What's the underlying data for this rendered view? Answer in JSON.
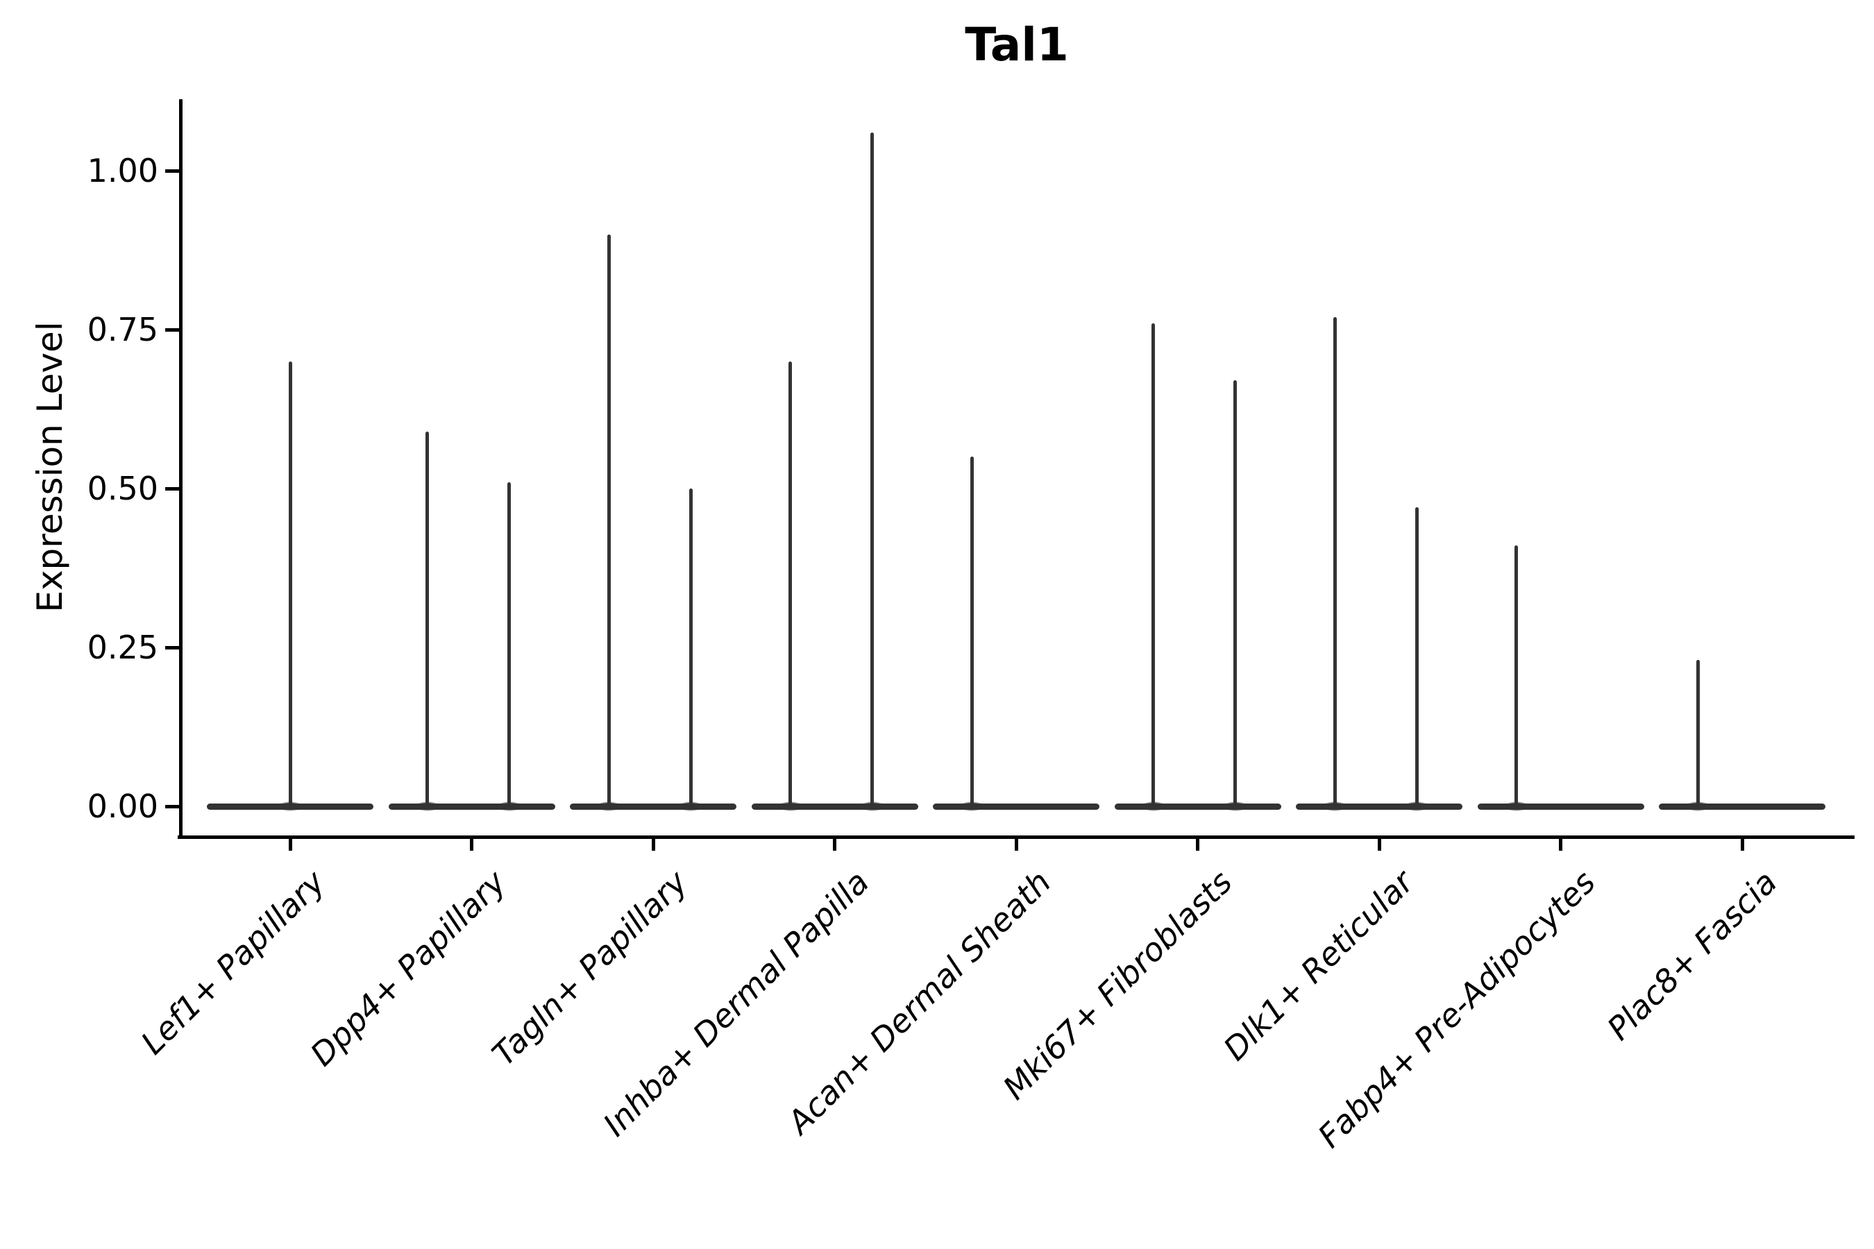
{
  "figure": {
    "background": "#ffffff",
    "ink_color": "#000000",
    "violin_color": "#333333"
  },
  "chart_data": {
    "type": "violin",
    "title": "Tal1",
    "xlabel": "",
    "ylabel": "Expression Level",
    "grid": false,
    "legend": null,
    "ylim": [
      -0.046,
      1.112
    ],
    "y_ticks": [
      {
        "label": "0.00",
        "value": 0.0
      },
      {
        "label": "0.25",
        "value": 0.25
      },
      {
        "label": "0.50",
        "value": 0.5
      },
      {
        "label": "0.75",
        "value": 0.75
      },
      {
        "label": "1.00",
        "value": 1.0
      }
    ],
    "categories": [
      "Lef1+ Papillary",
      "Dpp4+ Papillary",
      "Tagln+ Papillary",
      "Inhba+ Dermal Papilla",
      "Acan+ Dermal Sheath",
      "Mki67+ Fibroblasts",
      "Dlk1+ Reticular",
      "Fabp4+ Pre-Adipocytes",
      "Plac8+ Fascia"
    ],
    "violins": [
      {
        "category": "Lef1+ Papillary",
        "baseline_value": 0.0,
        "spikes": [
          {
            "slot": "center",
            "max_expression": 0.7
          }
        ]
      },
      {
        "category": "Dpp4+ Papillary",
        "baseline_value": 0.0,
        "spikes": [
          {
            "slot": "left",
            "max_expression": 0.59
          },
          {
            "slot": "right",
            "max_expression": 0.51
          }
        ]
      },
      {
        "category": "Tagln+ Papillary",
        "baseline_value": 0.0,
        "spikes": [
          {
            "slot": "left",
            "max_expression": 0.9
          },
          {
            "slot": "right",
            "max_expression": 0.5
          }
        ]
      },
      {
        "category": "Inhba+ Dermal Papilla",
        "baseline_value": 0.0,
        "spikes": [
          {
            "slot": "left",
            "max_expression": 0.7
          },
          {
            "slot": "right",
            "max_expression": 1.06
          }
        ]
      },
      {
        "category": "Acan+ Dermal Sheath",
        "baseline_value": 0.0,
        "spikes": [
          {
            "slot": "left",
            "max_expression": 0.55
          }
        ]
      },
      {
        "category": "Mki67+ Fibroblasts",
        "baseline_value": 0.0,
        "spikes": [
          {
            "slot": "left",
            "max_expression": 0.76
          },
          {
            "slot": "right",
            "max_expression": 0.67
          }
        ]
      },
      {
        "category": "Dlk1+ Reticular",
        "baseline_value": 0.0,
        "spikes": [
          {
            "slot": "left",
            "max_expression": 0.77
          },
          {
            "slot": "right",
            "max_expression": 0.47
          }
        ]
      },
      {
        "category": "Fabp4+ Pre-Adipocytes",
        "baseline_value": 0.0,
        "spikes": [
          {
            "slot": "left",
            "max_expression": 0.41
          }
        ]
      },
      {
        "category": "Plac8+ Fascia",
        "baseline_value": 0.0,
        "spikes": [
          {
            "slot": "left",
            "max_expression": 0.23
          }
        ]
      }
    ]
  }
}
